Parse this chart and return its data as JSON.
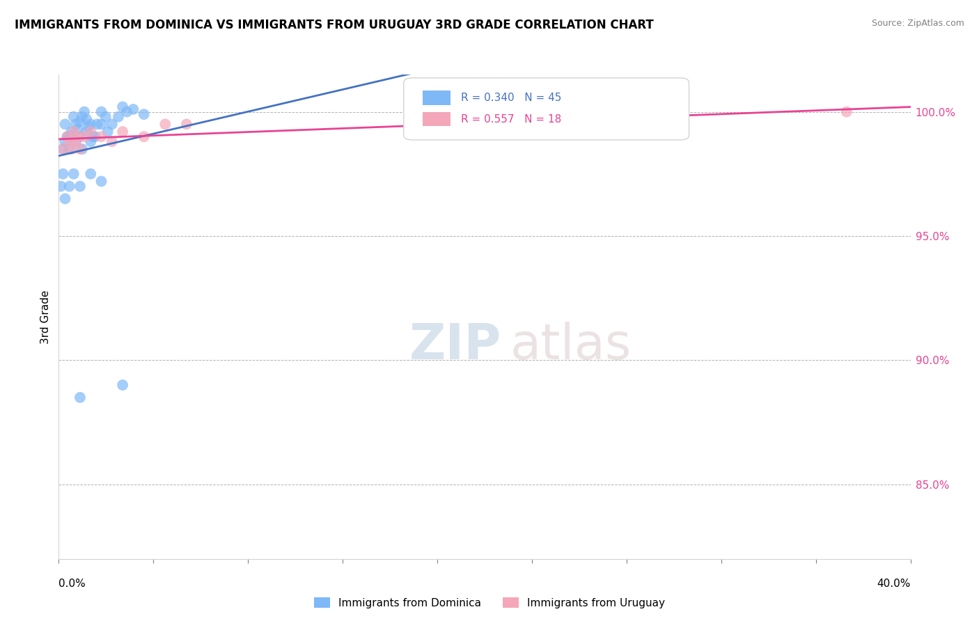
{
  "title": "IMMIGRANTS FROM DOMINICA VS IMMIGRANTS FROM URUGUAY 3RD GRADE CORRELATION CHART",
  "source": "Source: ZipAtlas.com",
  "ylabel": "3rd Grade",
  "ylabel_right_ticks": [
    100.0,
    95.0,
    90.0,
    85.0
  ],
  "ylabel_right_labels": [
    "100.0%",
    "95.0%",
    "90.0%",
    "85.0%"
  ],
  "xlim": [
    0.0,
    40.0
  ],
  "ylim": [
    82.0,
    101.5
  ],
  "r_dominica": 0.34,
  "n_dominica": 45,
  "r_uruguay": 0.557,
  "n_uruguay": 18,
  "color_dominica": "#7EB8F7",
  "color_uruguay": "#F4A7B9",
  "line_color_dominica": "#4472C4",
  "line_color_uruguay": "#E84393",
  "legend_label_dominica": "Immigrants from Dominica",
  "legend_label_uruguay": "Immigrants from Uruguay",
  "watermark_zip": "ZIP",
  "watermark_atlas": "atlas",
  "dominica_x": [
    0.3,
    0.5,
    0.6,
    0.7,
    0.8,
    0.9,
    1.0,
    1.1,
    1.2,
    1.3,
    1.4,
    1.5,
    1.6,
    1.8,
    2.0,
    2.2,
    2.5,
    3.0,
    3.5,
    4.0,
    0.2,
    0.3,
    0.4,
    0.5,
    0.6,
    0.8,
    1.0,
    1.1,
    1.3,
    1.5,
    1.7,
    2.0,
    2.3,
    2.8,
    3.2,
    0.1,
    0.2,
    0.3,
    0.5,
    0.7,
    1.0,
    1.5,
    2.0,
    1.0,
    3.0
  ],
  "dominica_y": [
    99.5,
    99.0,
    99.2,
    99.8,
    99.5,
    99.3,
    99.6,
    99.8,
    100.0,
    99.7,
    99.4,
    99.5,
    99.0,
    99.5,
    100.0,
    99.8,
    99.5,
    100.2,
    100.1,
    99.9,
    98.5,
    98.8,
    99.0,
    98.5,
    99.0,
    98.8,
    99.0,
    98.5,
    99.2,
    98.8,
    99.0,
    99.5,
    99.2,
    99.8,
    100.0,
    97.0,
    97.5,
    96.5,
    97.0,
    97.5,
    97.0,
    97.5,
    97.2,
    88.5,
    89.0
  ],
  "uruguay_x": [
    0.2,
    0.4,
    0.5,
    0.6,
    0.7,
    0.8,
    0.9,
    1.0,
    1.2,
    1.5,
    2.0,
    2.5,
    3.0,
    4.0,
    5.0,
    6.0,
    20.0,
    37.0
  ],
  "uruguay_y": [
    98.5,
    99.0,
    98.8,
    98.5,
    99.2,
    98.8,
    99.0,
    98.5,
    99.0,
    99.2,
    99.0,
    98.8,
    99.2,
    99.0,
    99.5,
    99.5,
    99.5,
    100.0
  ]
}
